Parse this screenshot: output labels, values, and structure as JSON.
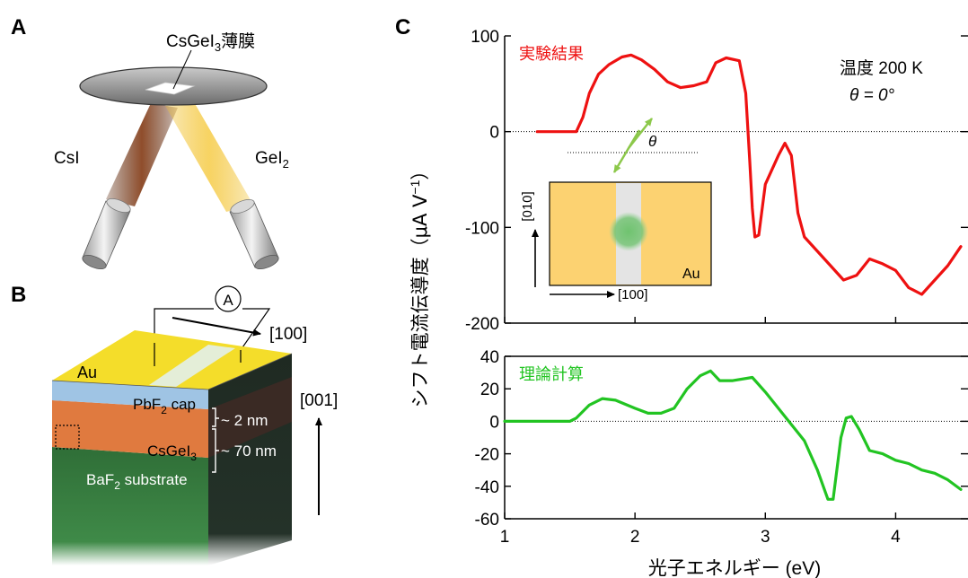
{
  "panels": {
    "a": {
      "label": "A",
      "film_label_main": "CsGeI",
      "film_label_sub": "3",
      "film_label_tail": "薄膜",
      "source_left": "CsI",
      "source_right_main": "GeI",
      "source_right_sub": "2"
    },
    "b": {
      "label": "B",
      "ammeter": "A",
      "dir_100": "[100]",
      "dir_001": "[001]",
      "electrode": "Au",
      "cap_main": "PbF",
      "cap_sub": "2",
      "cap_tail": " cap",
      "film_main": "CsGeI",
      "film_sub": "3",
      "substrate_main": "BaF",
      "substrate_sub": "2",
      "substrate_tail": " substrate",
      "cap_thickness": "~ 2 nm",
      "film_thickness": "~ 70 nm"
    },
    "c": {
      "label": "C",
      "y_label_main": "シフト電流伝導度（μA V",
      "y_label_sup": "−1",
      "y_label_tail": "）",
      "x_label": "光子エネルギー (eV)",
      "temp_label": "温度  200 K",
      "theta_label": "θ = 0°",
      "inset": {
        "theta": "θ",
        "axis_010": "[010]",
        "axis_100": "[100]",
        "au": "Au"
      },
      "colors": {
        "experiment": "#ee1111",
        "theory": "#22c422",
        "inset_bg": "#fcd271",
        "inset_gap": "#e4e4e4"
      }
    }
  },
  "chart_data": [
    {
      "type": "line",
      "series": [
        {
          "name": "実験結果",
          "x": [
            1.25,
            1.55,
            1.6,
            1.65,
            1.72,
            1.8,
            1.9,
            1.97,
            2.05,
            2.15,
            2.25,
            2.35,
            2.45,
            2.55,
            2.62,
            2.7,
            2.8,
            2.85,
            2.88,
            2.9,
            2.92,
            2.95,
            3.0,
            3.1,
            3.15,
            3.2,
            3.25,
            3.3,
            3.5,
            3.6,
            3.7,
            3.8,
            3.9,
            4.0,
            4.1,
            4.2,
            4.3,
            4.4,
            4.5
          ],
          "values": [
            0,
            0,
            15,
            40,
            60,
            70,
            78,
            80,
            75,
            65,
            52,
            46,
            48,
            52,
            72,
            77,
            74,
            40,
            -30,
            -80,
            -110,
            -108,
            -55,
            -25,
            -12,
            -25,
            -85,
            -110,
            -140,
            -155,
            -150,
            -133,
            -138,
            -145,
            -163,
            -170,
            -155,
            -140,
            -120
          ]
        }
      ],
      "xlim": [
        1,
        4.5
      ],
      "ylim": [
        -200,
        100
      ],
      "yticks": [
        -200,
        -100,
        0,
        100
      ],
      "ylabel": "シフト電流伝導度（μA V−1）",
      "grid": false
    },
    {
      "type": "line",
      "series": [
        {
          "name": "理論計算",
          "x": [
            1.0,
            1.5,
            1.55,
            1.65,
            1.75,
            1.85,
            2.0,
            2.1,
            2.2,
            2.3,
            2.4,
            2.5,
            2.58,
            2.65,
            2.75,
            2.9,
            3.0,
            3.1,
            3.2,
            3.3,
            3.4,
            3.48,
            3.52,
            3.58,
            3.62,
            3.66,
            3.72,
            3.8,
            3.9,
            4.0,
            4.1,
            4.2,
            4.3,
            4.4,
            4.5
          ],
          "values": [
            0,
            0,
            2,
            10,
            14,
            13,
            8,
            5,
            5,
            8,
            20,
            28,
            31,
            25,
            25,
            27,
            18,
            8,
            -2,
            -12,
            -30,
            -48,
            -48,
            -10,
            2,
            3,
            -5,
            -18,
            -20,
            -24,
            -26,
            -30,
            -32,
            -36,
            -42
          ]
        }
      ],
      "xlim": [
        1,
        4.5
      ],
      "ylim": [
        -60,
        40
      ],
      "xticks": [
        1,
        2,
        3,
        4
      ],
      "yticks": [
        -60,
        -40,
        -20,
        0,
        20,
        40
      ],
      "xlabel": "光子エネルギー (eV)",
      "grid": false
    }
  ]
}
